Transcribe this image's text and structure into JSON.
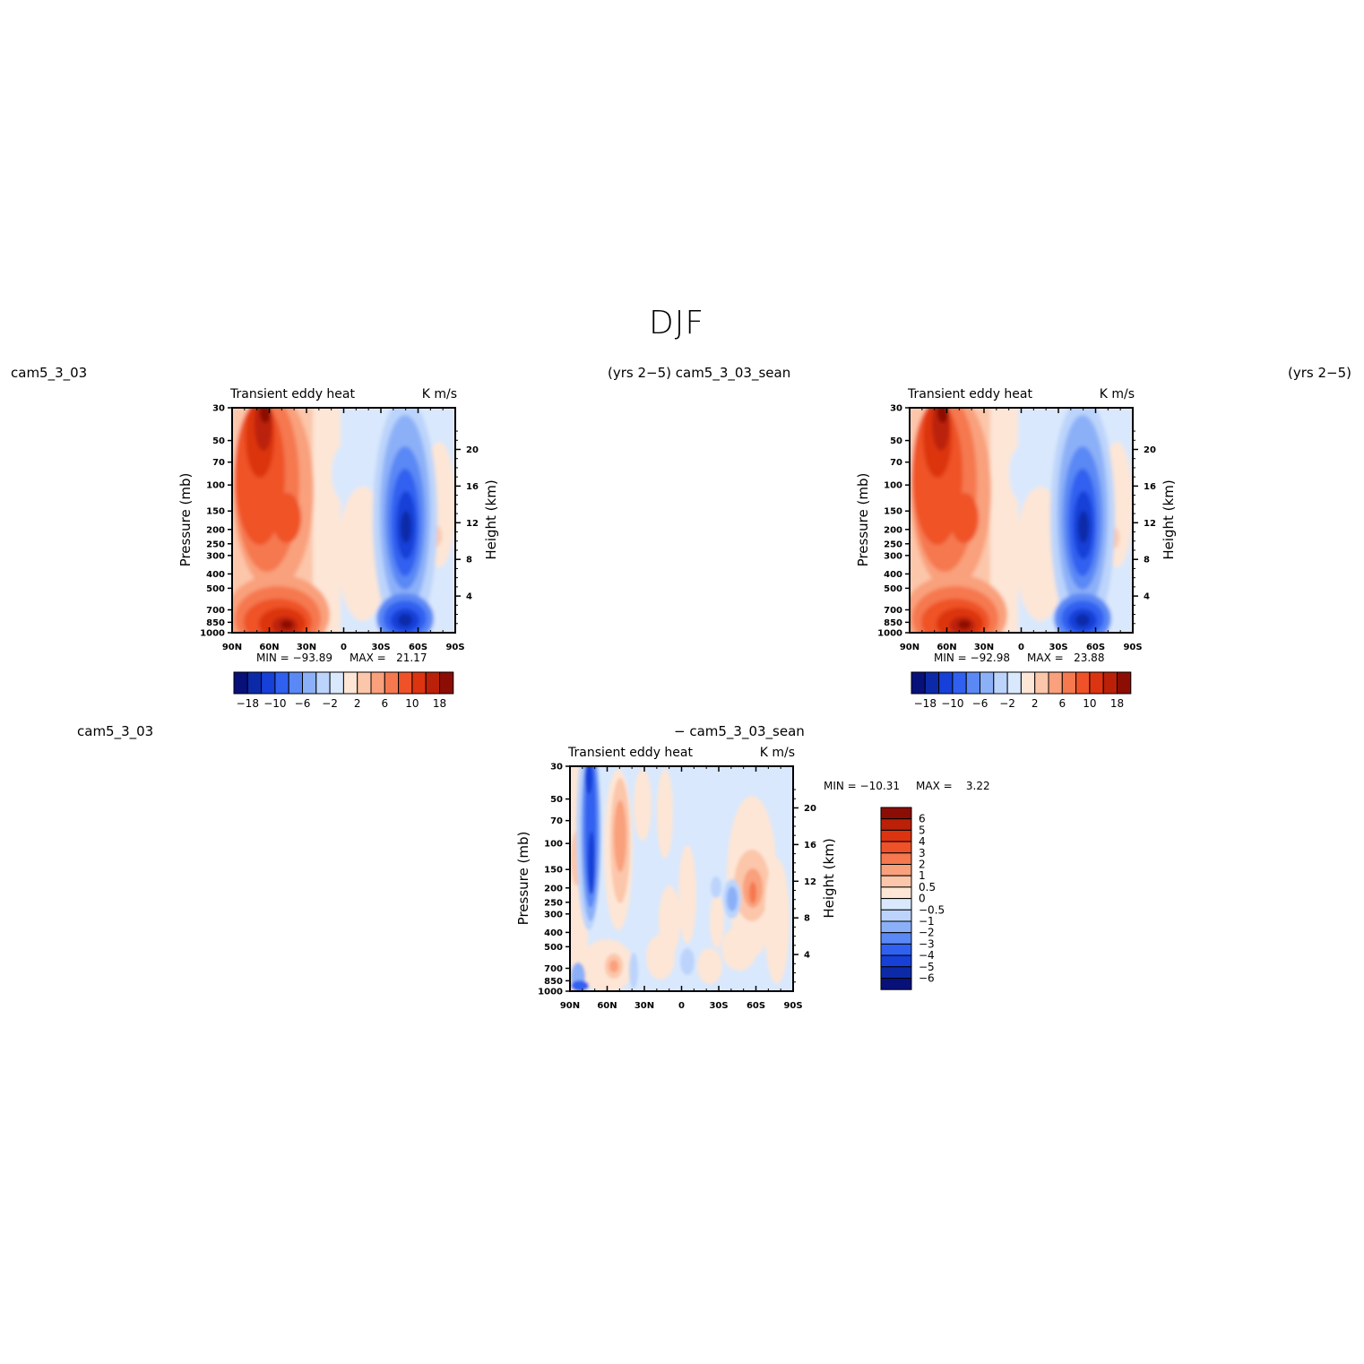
{
  "page": {
    "title": "DJF"
  },
  "panels": [
    {
      "id": "p1",
      "left_label": "cam5_3_03",
      "right_label": "(yrs 2−5) cam5_3_03_sean",
      "title_left": "Transient eddy heat",
      "title_right": "K m/s",
      "min_label": "MIN = −93.89",
      "max_label": "MAX =   21.17"
    },
    {
      "id": "p2",
      "left_label": "",
      "right_label": "(yrs 2−5)",
      "title_left": "Transient eddy heat",
      "title_right": "K m/s",
      "min_label": "MIN = −92.98",
      "max_label": "MAX =   23.88"
    },
    {
      "id": "p3",
      "left_label": "cam5_3_03",
      "right_label": "− cam5_3_03_sean",
      "title_left": "Transient eddy heat",
      "title_right": "K m/s",
      "min_label": "MIN = −10.31",
      "max_label": "MAX =    3.22"
    }
  ],
  "chart_data": [
    {
      "type": "heatmap",
      "title": "Transient eddy heat",
      "units": "K m/s",
      "xlabel": "",
      "ylabel": "Pressure (mb)",
      "ylabel_right": "Height (km)",
      "x_ticks": [
        "90N",
        "60N",
        "30N",
        "0",
        "30S",
        "60S",
        "90S"
      ],
      "y_ticks": [
        "30",
        "50",
        "70",
        "100",
        "150",
        "200",
        "250",
        "300",
        "400",
        "500",
        "700",
        "850",
        "1000"
      ],
      "y_ticks_right": [
        "20",
        "16",
        "12",
        "8",
        "4"
      ],
      "min": -93.89,
      "max": 21.17,
      "colorbar_labels": [
        "−18",
        "−10",
        "−6",
        "−2",
        "2",
        "6",
        "10",
        "18"
      ]
    },
    {
      "type": "heatmap",
      "title": "Transient eddy heat",
      "units": "K m/s",
      "xlabel": "",
      "ylabel": "Pressure (mb)",
      "ylabel_right": "Height (km)",
      "x_ticks": [
        "90N",
        "60N",
        "30N",
        "0",
        "30S",
        "60S",
        "90S"
      ],
      "y_ticks": [
        "30",
        "50",
        "70",
        "100",
        "150",
        "200",
        "250",
        "300",
        "400",
        "500",
        "700",
        "850",
        "1000"
      ],
      "y_ticks_right": [
        "20",
        "16",
        "12",
        "8",
        "4"
      ],
      "min": -92.98,
      "max": 23.88,
      "colorbar_labels": [
        "−18",
        "−10",
        "−6",
        "−2",
        "2",
        "6",
        "10",
        "18"
      ]
    },
    {
      "type": "heatmap",
      "title": "Transient eddy heat",
      "units": "K m/s",
      "xlabel": "",
      "ylabel": "Pressure (mb)",
      "ylabel_right": "Height (km)",
      "x_ticks": [
        "90N",
        "60N",
        "30N",
        "0",
        "30S",
        "60S",
        "90S"
      ],
      "y_ticks": [
        "30",
        "50",
        "70",
        "100",
        "150",
        "200",
        "250",
        "300",
        "400",
        "500",
        "700",
        "850",
        "1000"
      ],
      "y_ticks_right": [
        "20",
        "16",
        "12",
        "8",
        "4"
      ],
      "min": -10.31,
      "max": 3.22,
      "colorbar_labels": [
        "6",
        "5",
        "4",
        "3",
        "2",
        "1",
        "0.5",
        "0",
        "−0.5",
        "−1",
        "−2",
        "−3",
        "−4",
        "−5",
        "−6"
      ]
    }
  ],
  "colors": {
    "scale": [
      "#08107a",
      "#0c2aa8",
      "#1640d8",
      "#3060f0",
      "#5a88f5",
      "#8cb0f8",
      "#bcd4fb",
      "#d9e8fd",
      "#fde6d6",
      "#fcc6aa",
      "#f9a07c",
      "#f5784f",
      "#ef5228",
      "#dc3410",
      "#bb2008",
      "#8c0d04"
    ],
    "diff_scale": [
      "#8c0d04",
      "#bb2008",
      "#dc3410",
      "#ef5228",
      "#f5784f",
      "#f9a07c",
      "#fcc6aa",
      "#fde6d6",
      "#d9e8fd",
      "#bcd4fb",
      "#8cb0f8",
      "#5a88f5",
      "#3060f0",
      "#1640d8",
      "#0c2aa8",
      "#08107a"
    ]
  }
}
